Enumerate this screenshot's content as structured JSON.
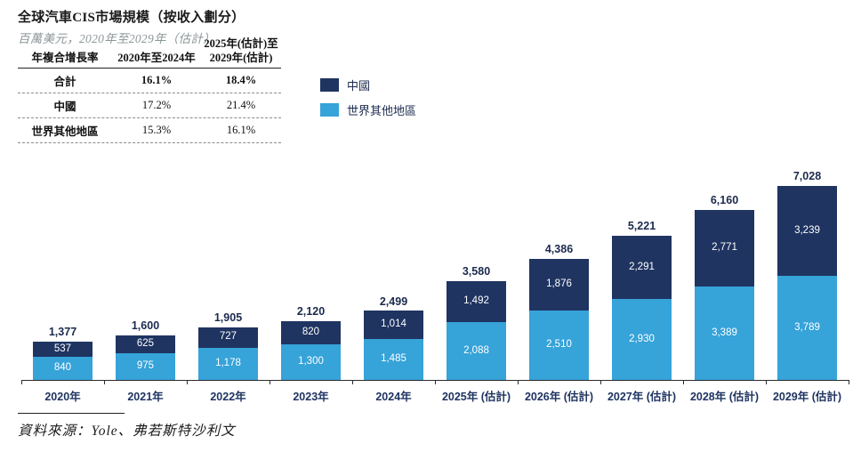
{
  "header": {
    "title": "全球汽車CIS市場規模（按收入劃分）",
    "subtitle": "百萬美元，2020年至2029年（估計）"
  },
  "cagr_table": {
    "col1_header": "年複合增長率",
    "col2_header": "2020年至2024年",
    "col3_header_line1": "2025年(估計)至",
    "col3_header_line2": "2029年(估計)",
    "rows": [
      {
        "label": "合計",
        "v2020_2024": "16.1%",
        "v2025_2029": "18.4%",
        "bold": true
      },
      {
        "label": "中國",
        "v2020_2024": "17.2%",
        "v2025_2029": "21.4%",
        "bold": false
      },
      {
        "label": "世界其他地區",
        "v2020_2024": "15.3%",
        "v2025_2029": "16.1%",
        "bold": false
      }
    ]
  },
  "legend": [
    {
      "label": "中國",
      "color": "#1f3461"
    },
    {
      "label": "世界其他地區",
      "color": "#36a3d9"
    }
  ],
  "chart_data": {
    "type": "bar",
    "stacked": true,
    "title": "全球汽車CIS市場規模（按收入劃分）",
    "unit": "百萬美元",
    "categories": [
      "2020年",
      "2021年",
      "2022年",
      "2023年",
      "2024年",
      "2025年 (估計)",
      "2026年 (估計)",
      "2027年 (估計)",
      "2028年 (估計)",
      "2029年 (估計)"
    ],
    "series": [
      {
        "name": "世界其他地區",
        "color": "#36a3d9",
        "values": [
          840,
          975,
          1178,
          1300,
          1485,
          2088,
          2510,
          2930,
          3389,
          3789
        ]
      },
      {
        "name": "中國",
        "color": "#1f3461",
        "values": [
          537,
          625,
          727,
          820,
          1014,
          1492,
          1876,
          2291,
          2771,
          3239
        ]
      }
    ],
    "totals": [
      1377,
      1600,
      1905,
      2120,
      2499,
      3580,
      4386,
      5221,
      6160,
      7028
    ],
    "ylim": [
      0,
      7028
    ],
    "grid": false,
    "legend_position": "top-left-of-plot",
    "value_labels": "inside-white, totals above bars, thousands separators"
  },
  "source": {
    "text": "資料來源：Yole、弗若斯特沙利文"
  }
}
